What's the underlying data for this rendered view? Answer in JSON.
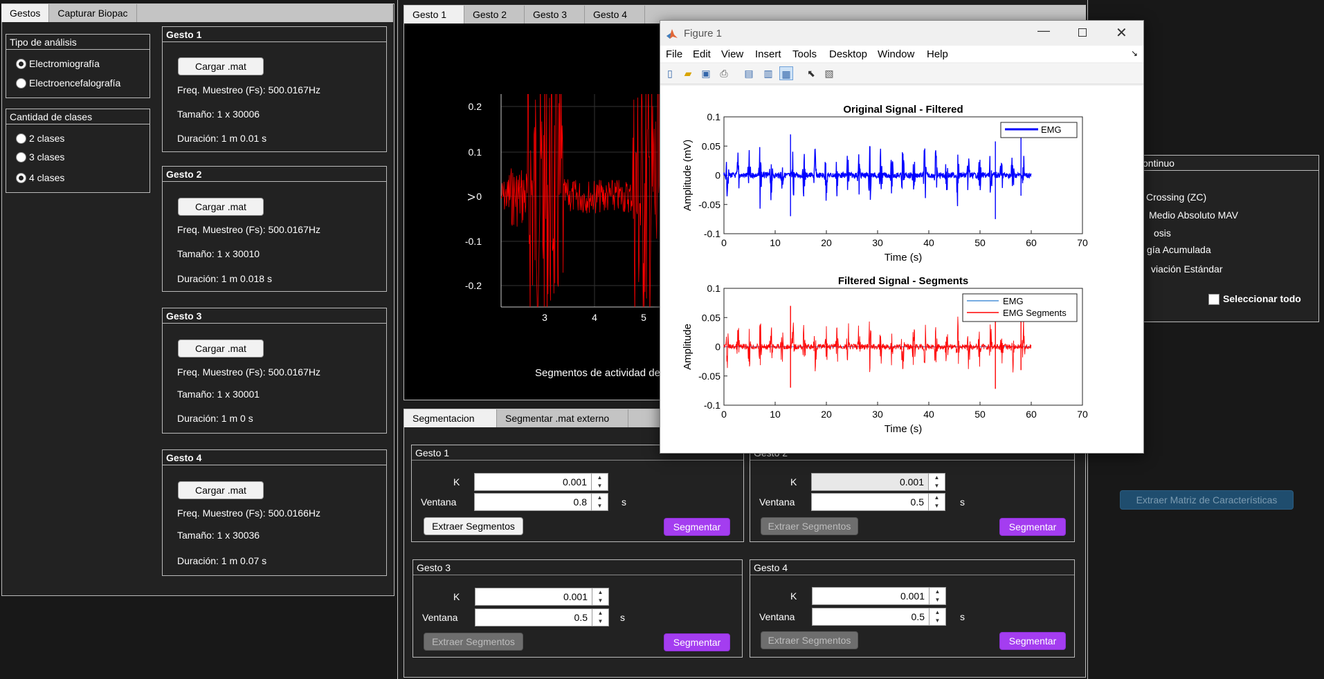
{
  "left": {
    "tabs": [
      "Gestos",
      "Capturar Biopac"
    ],
    "analysis": {
      "title": "Tipo de análisis",
      "options": [
        "Electromiografía",
        "Electroencefalografía"
      ],
      "selected": 0
    },
    "classes": {
      "title": "Cantidad de clases",
      "options": [
        "2 clases",
        "3 clases",
        "4 clases"
      ],
      "selected": 2
    },
    "gestures": [
      {
        "title": "Gesto 1",
        "button": "Cargar .mat",
        "freq": "Freq. Muestreo (Fs): 500.0167Hz",
        "size": "Tamaño: 1 x 30006",
        "duration": "Duración: 1 m 0.01 s"
      },
      {
        "title": "Gesto 2",
        "button": "Cargar .mat",
        "freq": "Freq. Muestreo (Fs): 500.0167Hz",
        "size": "Tamaño: 1 x 30010",
        "duration": "Duración: 1 m 0.018 s"
      },
      {
        "title": "Gesto 3",
        "button": "Cargar .mat",
        "freq": "Freq. Muestreo (Fs): 500.0167Hz",
        "size": "Tamaño: 1 x 30001",
        "duration": "Duración: 1 m 0 s"
      },
      {
        "title": "Gesto 4",
        "button": "Cargar .mat",
        "freq": "Freq. Muestreo (Fs): 500.0166Hz",
        "size": "Tamaño: 1 x 30036",
        "duration": "Duración: 1 m 0.07 s"
      }
    ]
  },
  "center": {
    "tabs": [
      "Gesto 1",
      "Gesto 2",
      "Gesto 3",
      "Gesto 4"
    ],
    "plot": {
      "ylabel": "V",
      "yticks": [
        "0.2",
        "0.1",
        "0",
        "-0.1",
        "-0.2"
      ],
      "xticks": [
        "3",
        "4",
        "5"
      ],
      "caption": "Segmentos de actividad de"
    },
    "seg_tabs": [
      "Segmentacion",
      "Segmentar .mat externo"
    ],
    "seg_panels": [
      {
        "title": "Gesto 1",
        "k_label": "K",
        "k": "0.001",
        "win_label": "Ventana",
        "win": "0.8",
        "unit": "s",
        "extract": "Extraer Segmentos",
        "segment": "Segmentar",
        "extract_enabled": true
      },
      {
        "title": "Gesto 2",
        "k_label": "K",
        "k": "0.001",
        "win_label": "Ventana",
        "win": "0.5",
        "unit": "s",
        "extract": "Extraer Segmentos",
        "segment": "Segmentar",
        "extract_enabled": false
      },
      {
        "title": "Gesto 3",
        "k_label": "K",
        "k": "0.001",
        "win_label": "Ventana",
        "win": "0.5",
        "unit": "s",
        "extract": "Extraer Segmentos",
        "segment": "Segmentar",
        "extract_enabled": false
      },
      {
        "title": "Gesto 4",
        "k_label": "K",
        "k": "0.001",
        "win_label": "Ventana",
        "win": "0.5",
        "unit": "s",
        "extract": "Extraer Segmentos",
        "segment": "Segmentar",
        "extract_enabled": false
      }
    ]
  },
  "right": {
    "panel_title": "ontinuo",
    "features": [
      "Crossing (ZC)",
      "Medio Absoluto MAV",
      "osis",
      "gía Acumulada",
      "viación Estándar"
    ],
    "select_all": "Seleccionar todo",
    "extract_matrix": "Extraer Matriz de Características"
  },
  "figure": {
    "title": "Figure 1",
    "menus": [
      "File",
      "Edit",
      "View",
      "Insert",
      "Tools",
      "Desktop",
      "Window",
      "Help"
    ],
    "colors": {
      "emg": "#0000ff",
      "segments": "#ff0000",
      "emg_light": "#4a90d9"
    }
  },
  "chart_data": [
    {
      "type": "line",
      "title": "Original Signal - Filtered",
      "xlabel": "Time (s)",
      "ylabel": "Amplitude (mV)",
      "xlim": [
        0,
        70
      ],
      "ylim": [
        -0.1,
        0.1
      ],
      "xticks": [
        "0",
        "10",
        "20",
        "30",
        "40",
        "50",
        "60",
        "70"
      ],
      "yticks": [
        "0.1",
        "0.05",
        "0",
        "-0.05",
        "-0.1"
      ],
      "legend": [
        "EMG"
      ],
      "legend_position": "top-right",
      "x_range": [
        0,
        60
      ],
      "bursts": 28,
      "series": [
        {
          "name": "EMG",
          "color": "#0000ff"
        }
      ]
    },
    {
      "type": "line",
      "title": "Filtered Signal - Segments",
      "xlabel": "Time (s)",
      "ylabel": "Amplitude",
      "xlim": [
        0,
        70
      ],
      "ylim": [
        -0.1,
        0.1
      ],
      "xticks": [
        "0",
        "10",
        "20",
        "30",
        "40",
        "50",
        "60",
        "70"
      ],
      "yticks": [
        "0.1",
        "0.05",
        "0",
        "-0.05",
        "-0.1"
      ],
      "legend": [
        "EMG",
        "EMG Segments"
      ],
      "legend_position": "top-right",
      "x_range": [
        0,
        60
      ],
      "bursts": 28,
      "series": [
        {
          "name": "EMG",
          "color": "#4a90d9"
        },
        {
          "name": "EMG Segments",
          "color": "#ff0000"
        }
      ]
    }
  ]
}
